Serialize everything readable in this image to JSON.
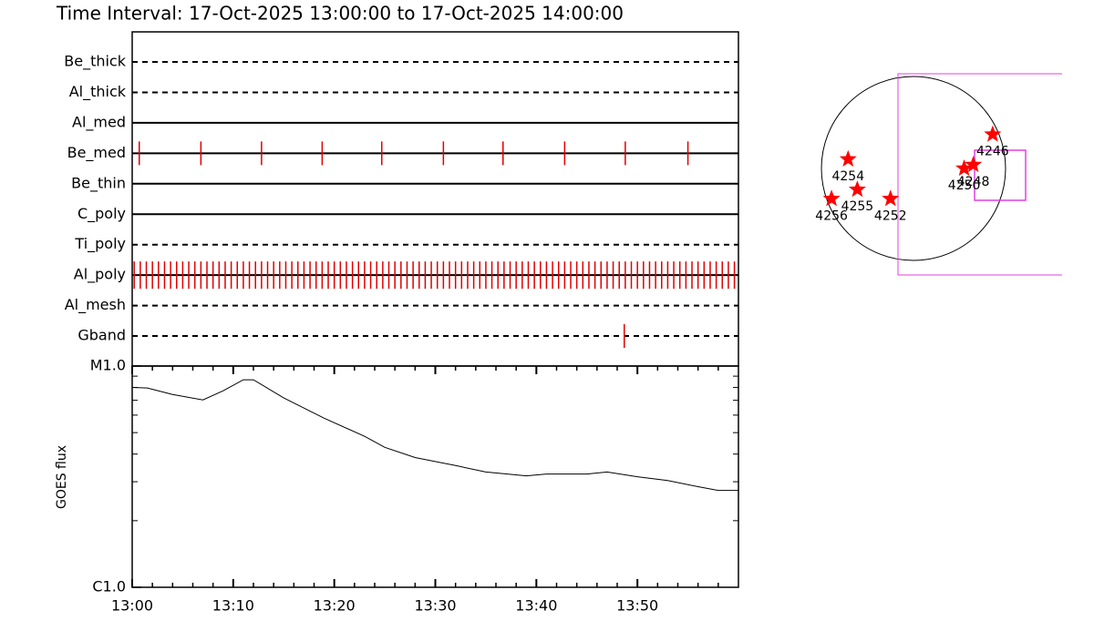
{
  "chart_data": [
    {
      "type": "timeline",
      "title": "Time Interval: 17-Oct-2025 13:00:00 to 17-Oct-2025 14:00:00",
      "color": "#e00000",
      "rows": [
        {
          "name": "Be_thick",
          "style": "dashed",
          "times": []
        },
        {
          "name": "Al_thick",
          "style": "dashed",
          "times": []
        },
        {
          "name": "Al_med",
          "style": "solid",
          "times": []
        },
        {
          "name": "Be_med",
          "style": "solid",
          "times": [
            0.7,
            6.8,
            12.8,
            18.8,
            24.7,
            30.8,
            36.7,
            42.8,
            48.8,
            55
          ]
        },
        {
          "name": "Be_thin",
          "style": "solid",
          "times": []
        },
        {
          "name": "C_poly",
          "style": "solid",
          "times": []
        },
        {
          "name": "Ti_poly",
          "style": "dashed",
          "times": []
        },
        {
          "name": "Al_poly",
          "style": "solid",
          "times": [
            0.2,
            0.8,
            1.4,
            2,
            2.6,
            3.2,
            3.8,
            4.4,
            5,
            5.6,
            6.2,
            6.8,
            7.4,
            8,
            8.6,
            9.2,
            9.8,
            10.4,
            11,
            11.6,
            12.2,
            12.8,
            13.4,
            14,
            14.6,
            15.2,
            15.8,
            16.4,
            17,
            17.6,
            18.2,
            18.8,
            19.4,
            20,
            20.6,
            21.2,
            21.8,
            22.4,
            23,
            23.6,
            24.2,
            24.8,
            25.4,
            26,
            26.6,
            27.2,
            27.8,
            28.4,
            29,
            29.6,
            30.2,
            30.8,
            31.4,
            32,
            32.6,
            33.2,
            33.8,
            34.4,
            35,
            35.6,
            36.2,
            36.8,
            37.4,
            38,
            38.6,
            39.2,
            39.8,
            40.4,
            41,
            41.6,
            42.2,
            42.8,
            43.4,
            44,
            44.6,
            45.2,
            45.8,
            46.4,
            47,
            47.6,
            48.2,
            48.8,
            49.4,
            50,
            50.6,
            51.2,
            51.8,
            52.4,
            53,
            53.6,
            54.2,
            54.8,
            55.4,
            56,
            56.6,
            57.2,
            57.8,
            58.4,
            59,
            59.6
          ]
        },
        {
          "name": "Al_mesh",
          "style": "dashed",
          "times": []
        },
        {
          "name": "Gband",
          "style": "dashed",
          "times": [
            48.7
          ]
        }
      ]
    },
    {
      "type": "line",
      "y_label": "GOES flux",
      "color": "#000000",
      "log_y": true,
      "xlim": [
        0,
        60
      ],
      "xticks": [
        {
          "value": 0,
          "label": "13:00"
        },
        {
          "value": 10,
          "label": "13:10"
        },
        {
          "value": 20,
          "label": "13:20"
        },
        {
          "value": 30,
          "label": "13:30"
        },
        {
          "value": 40,
          "label": "13:40"
        },
        {
          "value": 50,
          "label": "13:50"
        }
      ],
      "xminor_ticks": [
        2,
        4,
        6,
        8,
        12,
        14,
        16,
        18,
        22,
        24,
        26,
        28,
        32,
        34,
        36,
        38,
        42,
        44,
        46,
        48,
        52,
        54,
        56,
        58
      ],
      "ylim": [
        1e-06,
        1e-05
      ],
      "yticks": [
        {
          "value": 1e-06,
          "label": "C1.0"
        },
        {
          "value": 1e-05,
          "label": "M1.0"
        }
      ],
      "yminor_ticks": [
        2e-06,
        3e-06,
        4e-06,
        5e-06,
        6e-06,
        7e-06,
        8e-06,
        9e-06
      ],
      "x": [
        0,
        1.5,
        4,
        7,
        9,
        11,
        12,
        15,
        19,
        23,
        25,
        28,
        32,
        35,
        39,
        41,
        45,
        47,
        50,
        53,
        56,
        58,
        60
      ],
      "values": [
        8e-06,
        7.96e-06,
        7.44e-06,
        7.03e-06,
        7.73e-06,
        8.67e-06,
        8.67e-06,
        7.17e-06,
        5.81e-06,
        4.81e-06,
        4.29e-06,
        3.86e-06,
        3.55e-06,
        3.32e-06,
        3.19e-06,
        3.25e-06,
        3.25e-06,
        3.32e-06,
        3.16e-06,
        3.04e-06,
        2.85e-06,
        2.74e-06,
        2.74e-06
      ]
    },
    {
      "type": "map",
      "color": "#ff0000",
      "regions": [
        {
          "label": "4254",
          "x": -0.71,
          "y": 0.1
        },
        {
          "label": "4255",
          "x": -0.61,
          "y": -0.23
        },
        {
          "label": "4256",
          "x": -0.89,
          "y": -0.33
        },
        {
          "label": "4252",
          "x": -0.25,
          "y": -0.33
        },
        {
          "label": "4250",
          "x": 0.55,
          "y": 0.0
        },
        {
          "label": "4248",
          "x": 0.65,
          "y": 0.04
        },
        {
          "label": "4246",
          "x": 0.86,
          "y": 0.37
        }
      ]
    }
  ]
}
